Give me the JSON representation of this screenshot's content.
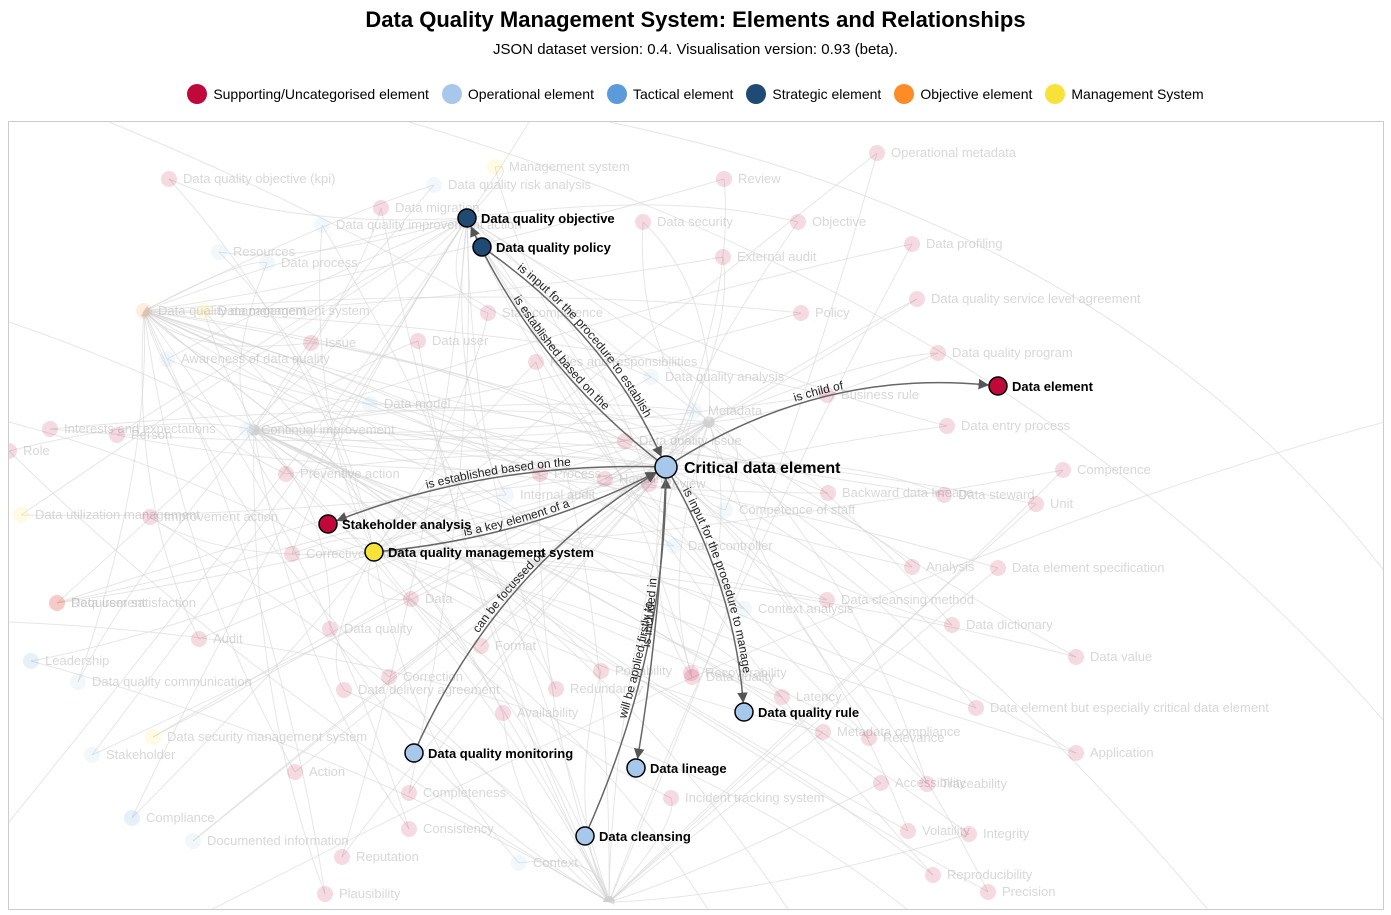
{
  "header": {
    "title": "Data Quality Management System: Elements and Relationships",
    "subtitle": "JSON dataset version: 0.4. Visualisation version: 0.93 (beta)."
  },
  "legend": [
    {
      "label": "Supporting/Uncategorised element",
      "color": "#c0093a"
    },
    {
      "label": "Operational element",
      "color": "#a7c8ea"
    },
    {
      "label": "Tactical element",
      "color": "#5b9bd9"
    },
    {
      "label": "Strategic element",
      "color": "#1f4a74"
    },
    {
      "label": "Objective element",
      "color": "#fd8c28"
    },
    {
      "label": "Management System",
      "color": "#f7e23a"
    }
  ],
  "graph": {
    "focus": {
      "id": "critical-data-element",
      "label": "Critical data element",
      "category": 1
    },
    "highlighted_nodes": [
      {
        "id": "data-quality-objective",
        "label": "Data quality objective",
        "category": 3
      },
      {
        "id": "data-quality-policy",
        "label": "Data quality policy",
        "category": 3
      },
      {
        "id": "data-element",
        "label": "Data element",
        "category": 0
      },
      {
        "id": "stakeholder-analysis",
        "label": "Stakeholder analysis",
        "category": 0
      },
      {
        "id": "data-quality-management-system",
        "label": "Data quality management system",
        "category": 5
      },
      {
        "id": "data-quality-rule",
        "label": "Data quality rule",
        "category": 1
      },
      {
        "id": "data-quality-monitoring",
        "label": "Data quality monitoring",
        "category": 1
      },
      {
        "id": "data-lineage",
        "label": "Data lineage",
        "category": 1
      },
      {
        "id": "data-cleansing",
        "label": "Data cleansing",
        "category": 1
      }
    ],
    "highlighted_edges": [
      {
        "from": "critical-data-element",
        "to": "data-quality-objective",
        "label": "is established based on the"
      },
      {
        "from": "data-quality-policy",
        "to": "critical-data-element",
        "label": "is input for the procedure to establish"
      },
      {
        "from": "critical-data-element",
        "to": "data-element",
        "label": "is child of"
      },
      {
        "from": "critical-data-element",
        "to": "stakeholder-analysis",
        "label": "is established based on the"
      },
      {
        "from": "data-quality-management-system",
        "to": "critical-data-element",
        "label": "is a key element of a"
      },
      {
        "from": "data-quality-monitoring",
        "to": "critical-data-element",
        "label": "can be focussed on"
      },
      {
        "from": "data-cleansing",
        "to": "critical-data-element",
        "label": "will be applied firstly to"
      },
      {
        "from": "critical-data-element",
        "to": "data-lineage",
        "label": "is included in"
      },
      {
        "from": "critical-data-element",
        "to": "data-quality-rule",
        "label": "is input for the procedure to manage"
      }
    ],
    "background_nodes": [
      {
        "label": "Management system",
        "category": 5
      },
      {
        "label": "Operational metadata",
        "category": 0
      },
      {
        "label": "Data quality objective (kpi)",
        "category": 0
      },
      {
        "label": "Data quality risk analysis",
        "category": 1
      },
      {
        "label": "Review",
        "category": 0
      },
      {
        "label": "Data migration",
        "category": 0
      },
      {
        "label": "Data security",
        "category": 0
      },
      {
        "label": "Objective",
        "category": 0
      },
      {
        "label": "Data quality improvement action",
        "category": 1
      },
      {
        "label": "Resources",
        "category": 1
      },
      {
        "label": "Data process",
        "category": 1
      },
      {
        "label": "External audit",
        "category": 0
      },
      {
        "label": "Data profiling",
        "category": 0
      },
      {
        "label": "Data quality service level agreement",
        "category": 0
      },
      {
        "label": "Data quality management",
        "category": 4
      },
      {
        "label": "Data management system",
        "category": 5
      },
      {
        "label": "Staff competence",
        "category": 0
      },
      {
        "label": "Policy",
        "category": 0
      },
      {
        "label": "Issue",
        "category": 0
      },
      {
        "label": "Data user",
        "category": 0
      },
      {
        "label": "Data quality program",
        "category": 0
      },
      {
        "label": "Awareness of data quality",
        "category": 1
      },
      {
        "label": "Roles and responsibilities",
        "category": 0
      },
      {
        "label": "Data quality analysis",
        "category": 1
      },
      {
        "label": "Business rule",
        "category": 0
      },
      {
        "label": "Data model",
        "category": 1
      },
      {
        "label": "Metadata",
        "category": 1
      },
      {
        "label": "Interests and expectations",
        "category": 0
      },
      {
        "label": "Person",
        "category": 0
      },
      {
        "label": "Continual improvement",
        "category": 1
      },
      {
        "label": "Data entry process",
        "category": 0
      },
      {
        "label": "Data quality issue",
        "category": 0
      },
      {
        "label": "Preventive action",
        "category": 0
      },
      {
        "label": "Process",
        "category": 0
      },
      {
        "label": "Handling",
        "category": 0
      },
      {
        "label": "Review",
        "category": 0
      },
      {
        "label": "Competence",
        "category": 0
      },
      {
        "label": "Internal audit",
        "category": 1
      },
      {
        "label": "Backward data lineage",
        "category": 0
      },
      {
        "label": "Data steward",
        "category": 0
      },
      {
        "label": "Unit",
        "category": 0
      },
      {
        "label": "Competence of staff",
        "category": 1
      },
      {
        "label": "Data utilization management",
        "category": 5
      },
      {
        "label": "Improvement action",
        "category": 0
      },
      {
        "label": "Corrective action",
        "category": 0
      },
      {
        "label": "Data controller",
        "category": 1
      },
      {
        "label": "Analysis",
        "category": 0
      },
      {
        "label": "Data element specification",
        "category": 0
      },
      {
        "label": "Requirement",
        "category": 4
      },
      {
        "label": "Data user satisfaction",
        "category": 0
      },
      {
        "label": "Data",
        "category": 0
      },
      {
        "label": "Context analysis",
        "category": 1
      },
      {
        "label": "Data cleansing method",
        "category": 0
      },
      {
        "label": "Audit",
        "category": 0
      },
      {
        "label": "Data quality",
        "category": 0
      },
      {
        "label": "Format",
        "category": 0
      },
      {
        "label": "Data dictionary",
        "category": 0
      },
      {
        "label": "Leadership",
        "category": 2
      },
      {
        "label": "Data value",
        "category": 0
      },
      {
        "label": "Data quality communication",
        "category": 1
      },
      {
        "label": "Correction",
        "category": 0
      },
      {
        "label": "Portability",
        "category": 0
      },
      {
        "label": "Recoverability",
        "category": 0
      },
      {
        "label": "Data quality",
        "category": 0
      },
      {
        "label": "Data delivery agreement",
        "category": 0
      },
      {
        "label": "Redundancy",
        "category": 0
      },
      {
        "label": "Latency",
        "category": 0
      },
      {
        "label": "Data element but especially critical data element",
        "category": 0
      },
      {
        "label": "Availability",
        "category": 0
      },
      {
        "label": "Data security management system",
        "category": 5
      },
      {
        "label": "Stakeholder",
        "category": 1
      },
      {
        "label": "Metadata compliance",
        "category": 0
      },
      {
        "label": "Relevance",
        "category": 0
      },
      {
        "label": "Application",
        "category": 0
      },
      {
        "label": "Action",
        "category": 0
      },
      {
        "label": "Accessibility",
        "category": 0
      },
      {
        "label": "Traceability",
        "category": 0
      },
      {
        "label": "Completeness",
        "category": 0
      },
      {
        "label": "Incident tracking system",
        "category": 0
      },
      {
        "label": "Compliance",
        "category": 2
      },
      {
        "label": "Consistency",
        "category": 0
      },
      {
        "label": "Volatility",
        "category": 0
      },
      {
        "label": "Integrity",
        "category": 0
      },
      {
        "label": "Documented information",
        "category": 1
      },
      {
        "label": "Reputation",
        "category": 0
      },
      {
        "label": "Context",
        "category": 1
      },
      {
        "label": "Reproducibility",
        "category": 0
      },
      {
        "label": "Plausibility",
        "category": 0
      },
      {
        "label": "Precision",
        "category": 0
      },
      {
        "label": "Role",
        "category": 0
      }
    ]
  }
}
